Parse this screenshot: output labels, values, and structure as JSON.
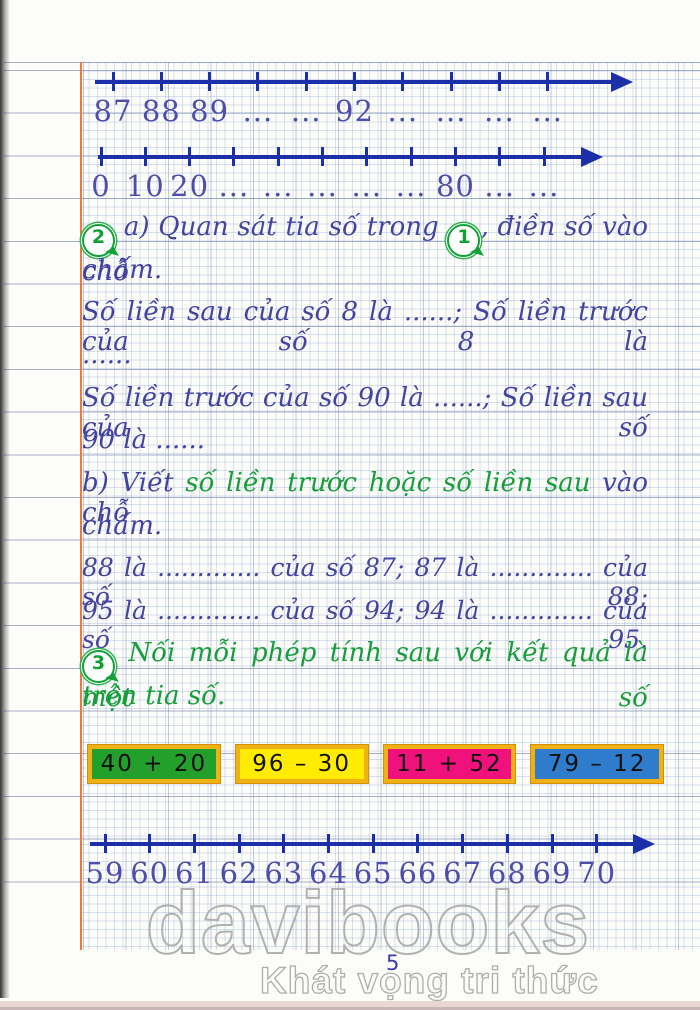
{
  "colors": {
    "ink_blue": "#44449f",
    "accent_green": "#179e3b",
    "number_line_blue": "#1b2fa8",
    "margin_orange": "#ec7a3c",
    "box_border_gold": "#f0b115"
  },
  "number_lines": [
    {
      "name": "top",
      "labels": [
        "87",
        "88",
        "89",
        "...",
        "...",
        "92",
        "...",
        "...",
        "...",
        "..."
      ]
    },
    {
      "name": "middle",
      "labels": [
        "0",
        "10",
        "20",
        "...",
        "...",
        "...",
        "...",
        "...",
        "80",
        "...",
        "..."
      ]
    },
    {
      "name": "bottom",
      "labels": [
        "59",
        "60",
        "61",
        "62",
        "63",
        "64",
        "65",
        "66",
        "67",
        "68",
        "69",
        "70"
      ]
    }
  ],
  "problem2": {
    "badge": "2",
    "ref_badge": "1",
    "intro_prefix": "a) Quan sát tia số trong",
    "intro_suffix": ", điền số vào chỗ",
    "intro_wrap": "chấm.",
    "sent_after8": "Số liền sau của số 8 là ......; Số liền trước của số 8 là",
    "sent_after8_wrap": "......",
    "sent_before90": "Số liền trước của số 90 là ......; Số liền sau của số",
    "sent_before90_wrap": "90 là ......",
    "partb_prefix": "b) Viết",
    "partb_green": "số liền trước hoặc số liền sau",
    "partb_suffix": "vào chỗ",
    "partb_wrap": "chấm.",
    "fill_87_88": "88 là ............. của số 87; 87 là ............. của số 88;",
    "fill_94_95": "95 là ............. của số 94; 94 là ............. của số 95."
  },
  "problem3": {
    "badge": "3",
    "text": "Nối mỗi phép tính sau với kết quả là một số",
    "text_wrap": "trên tia số.",
    "box_border": "#f0b115",
    "operations": [
      {
        "label": "40 + 20",
        "fill": "#23a02c"
      },
      {
        "label": "96 – 30",
        "fill": "#ffec00"
      },
      {
        "label": "11 + 52",
        "fill": "#ef127d"
      },
      {
        "label": "79 – 12",
        "fill": "#2f7ccc"
      }
    ]
  },
  "footer": {
    "page_number": "5",
    "watermark_brand": "davibooks",
    "watermark_tagline": "Khát vọng tri thức"
  }
}
